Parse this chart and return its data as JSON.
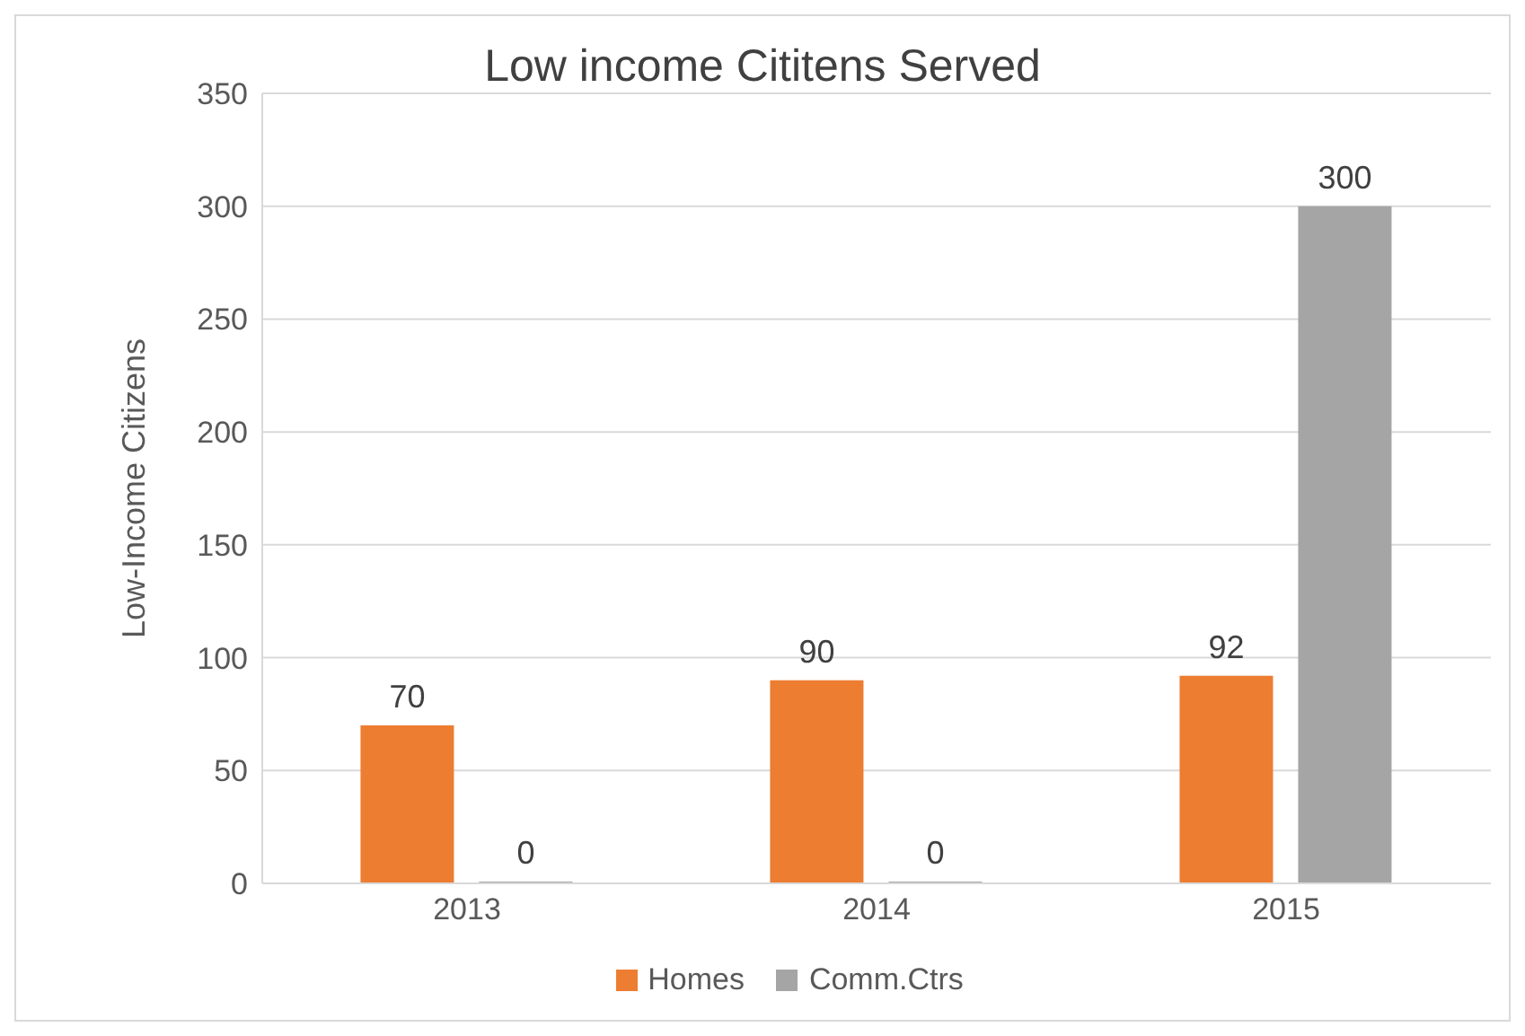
{
  "chart_data": {
    "type": "bar",
    "title": "Low income Cititens Served",
    "ylabel": "Low-Income Citizens",
    "categories": [
      "2013",
      "2014",
      "2015"
    ],
    "series": [
      {
        "name": "Homes",
        "color": "#ed7d31",
        "values": [
          70,
          90,
          92
        ]
      },
      {
        "name": "Comm.Ctrs",
        "color": "#a5a5a5",
        "values": [
          0,
          0,
          300
        ]
      }
    ],
    "ylim": [
      0,
      350
    ],
    "yticks": [
      0,
      50,
      100,
      150,
      200,
      250,
      300,
      350
    ],
    "grid": "y",
    "legend": "bottom",
    "data_labels": true
  }
}
